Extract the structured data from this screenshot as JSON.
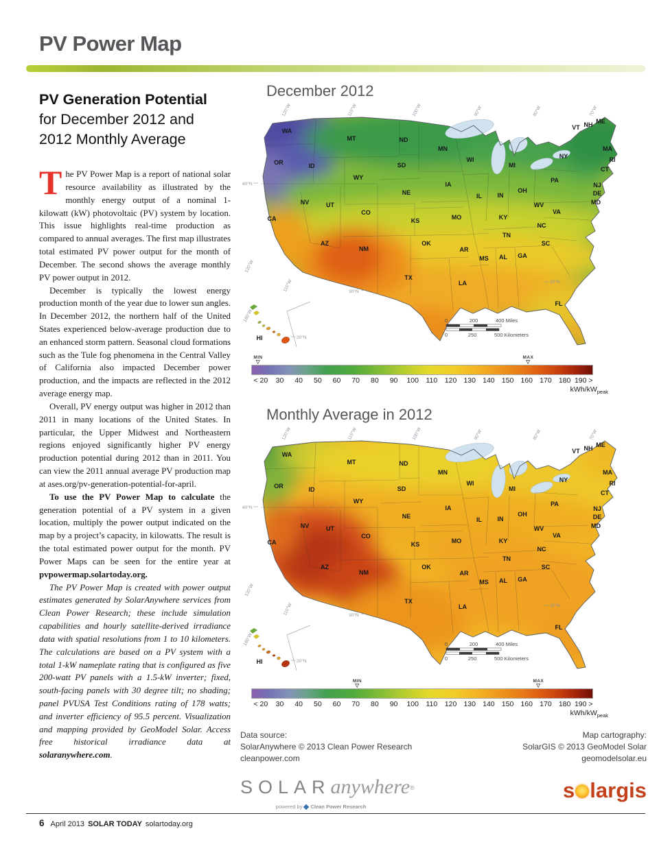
{
  "header": {
    "title": "PV Power Map"
  },
  "article": {
    "heading_line1": "PV Generation Potential",
    "heading_line2": "for December 2012 and",
    "heading_line3": "2012 Monthly Average",
    "dropcap": "T",
    "p1": "he PV Power Map is a report of national solar resource availability as illustrated by the monthly energy output of a nominal 1-kilowatt (kW) photovoltaic (PV) system by location. This issue highlights real-time production as compared to annual averages. The first map illustrates total estimated PV power output for the month of December. The second shows the average monthly PV power output in 2012.",
    "p2": "December is typically the lowest energy production month of the year due to lower sun angles. In December 2012, the northern half of the United States experienced below-average production due to an enhanced storm pattern. Seasonal cloud formations such as the Tule fog phenomena in the Central Valley of California also impacted December power production, and the impacts are reflected in the 2012 average energy map.",
    "p3": "Overall, PV energy output was higher in 2012 than 2011 in many locations of the United States. In particular, the Upper Midwest and Northeastern regions enjoyed significantly higher PV energy production potential during 2012 than in 2011. You can view the 2011 annual average PV production map at ases.org/pv-generation-potential-for-april.",
    "p4_bold": "To use the PV Power Map to calculate",
    "p4_text": " the generation potential of a PV system in a given location, multiply the power output indicated on the map by a project’s capacity, in kilowatts. The result is the total estimated power output for the month. PV Power Maps can be seen for the entire year at ",
    "p4_link": "pvpowermap.solartoday.org.",
    "p5_text": "The PV Power Map is created with power output estimates generated by SolarAnywhere services from Clean Power Research; these include simulation capabilities and hourly satellite-derived irradiance data with spatial resolutions from 1 to 10 kilometers. The calculations are based on a PV system with a total 1-kW nameplate rating that is configured as five 200-watt PV panels with a 1.5-kW inverter; fixed, south-facing panels with 30 degree tilt; no shading; panel PVUSA Test Conditions rating of 178 watts; and inverter efficiency of 95.5 percent. Visualization and mapping provided by GeoModel Solar. Access free historical irradiance data at ",
    "p5_link": "solaranywhere.com",
    "p5_end": "."
  },
  "map1": {
    "title": "December 2012"
  },
  "map2": {
    "title": "Monthly Average in 2012"
  },
  "map_common": {
    "states": [
      "WA",
      "OR",
      "ID",
      "MT",
      "ND",
      "SD",
      "MN",
      "WI",
      "MI",
      "WY",
      "NE",
      "IA",
      "IL",
      "IN",
      "OH",
      "PA",
      "NY",
      "VT",
      "NH",
      "ME",
      "MA",
      "RI",
      "CT",
      "NJ",
      "DE",
      "MD",
      "NV",
      "UT",
      "CO",
      "KS",
      "MO",
      "KY",
      "WV",
      "VA",
      "CA",
      "AZ",
      "NM",
      "OK",
      "AR",
      "TN",
      "NC",
      "SC",
      "MS",
      "AL",
      "GA",
      "TX",
      "LA",
      "FL",
      "HI"
    ],
    "legend_labels": [
      "< 20",
      "30",
      "40",
      "50",
      "60",
      "70",
      "80",
      "90",
      "100",
      "110",
      "120",
      "130",
      "140",
      "150",
      "160",
      "170",
      "180",
      "190 >"
    ],
    "unit_main": "kWh/kW",
    "unit_sub": "peak",
    "min_label": "MIN",
    "max_label": "MAX",
    "scale": {
      "mi0": "0",
      "mi200": "200",
      "mi400": "400 Miles",
      "km0": "0",
      "km250": "250",
      "km500": "500 Kilometers"
    },
    "graticule": {
      "n40": "40°N",
      "n30": "30°N",
      "n20": "20°N",
      "w160": "160°W",
      "top": [
        "120°W",
        "110°W",
        "100°W",
        "90°W",
        "80°W",
        "70°W"
      ]
    }
  },
  "icons": {
    "marker_triangle": "▽"
  },
  "credits": {
    "ds_label": "Data source:",
    "ds_line1": "SolarAnywhere © 2013 Clean Power Research",
    "ds_line2": "cleanpower.com",
    "sa_logo_1": "SOLAR",
    "sa_logo_2": "anywhere",
    "sa_reg": "®",
    "sa_tag1": "powered by",
    "sa_tag2": "Clean Power Research",
    "mc_label": "Map cartography:",
    "mc_line1": "SolarGIS © 2013 GeoModel Solar",
    "mc_line2": "geomodelsolar.eu",
    "sg_p1": "s",
    "sg_p2": "largis"
  },
  "footer": {
    "page_number": "6",
    "date": "April 2013",
    "magazine": "SOLAR TODAY",
    "site": "solartoday.org"
  }
}
